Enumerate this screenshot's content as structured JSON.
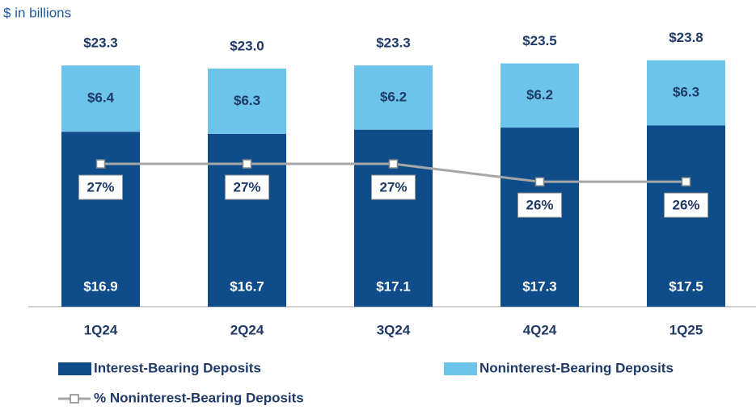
{
  "chart_data": {
    "type": "bar",
    "stacked": true,
    "subtitle": "$ in billions",
    "categories": [
      "1Q24",
      "2Q24",
      "3Q24",
      "4Q24",
      "1Q25"
    ],
    "series": [
      {
        "name": "Interest-Bearing Deposits",
        "color": "#0e4d8a",
        "values": [
          16.9,
          16.7,
          17.1,
          17.3,
          17.5
        ],
        "value_labels": [
          "$16.9",
          "$16.7",
          "$17.1",
          "$17.3",
          "$17.5"
        ]
      },
      {
        "name": "Noninterest-Bearing Deposits",
        "color": "#6cc4ea",
        "values": [
          6.4,
          6.3,
          6.2,
          6.2,
          6.3
        ],
        "value_labels": [
          "$6.4",
          "$6.3",
          "$6.2",
          "$6.2",
          "$6.3"
        ]
      },
      {
        "name": "% Noninterest-Bearing Deposits",
        "type": "line",
        "axis": "y2",
        "color": "#a6a6a6",
        "values": [
          27,
          27,
          27,
          26,
          26
        ],
        "value_labels": [
          "27%",
          "27%",
          "27%",
          "26%",
          "26%"
        ]
      }
    ],
    "totals": [
      23.3,
      23.0,
      23.3,
      23.5,
      23.8
    ],
    "total_labels": [
      "$23.3",
      "$23.0",
      "$23.3",
      "$23.5",
      "$23.8"
    ],
    "ylim": [
      0,
      25
    ],
    "y2lim": [
      19,
      33.5
    ]
  }
}
